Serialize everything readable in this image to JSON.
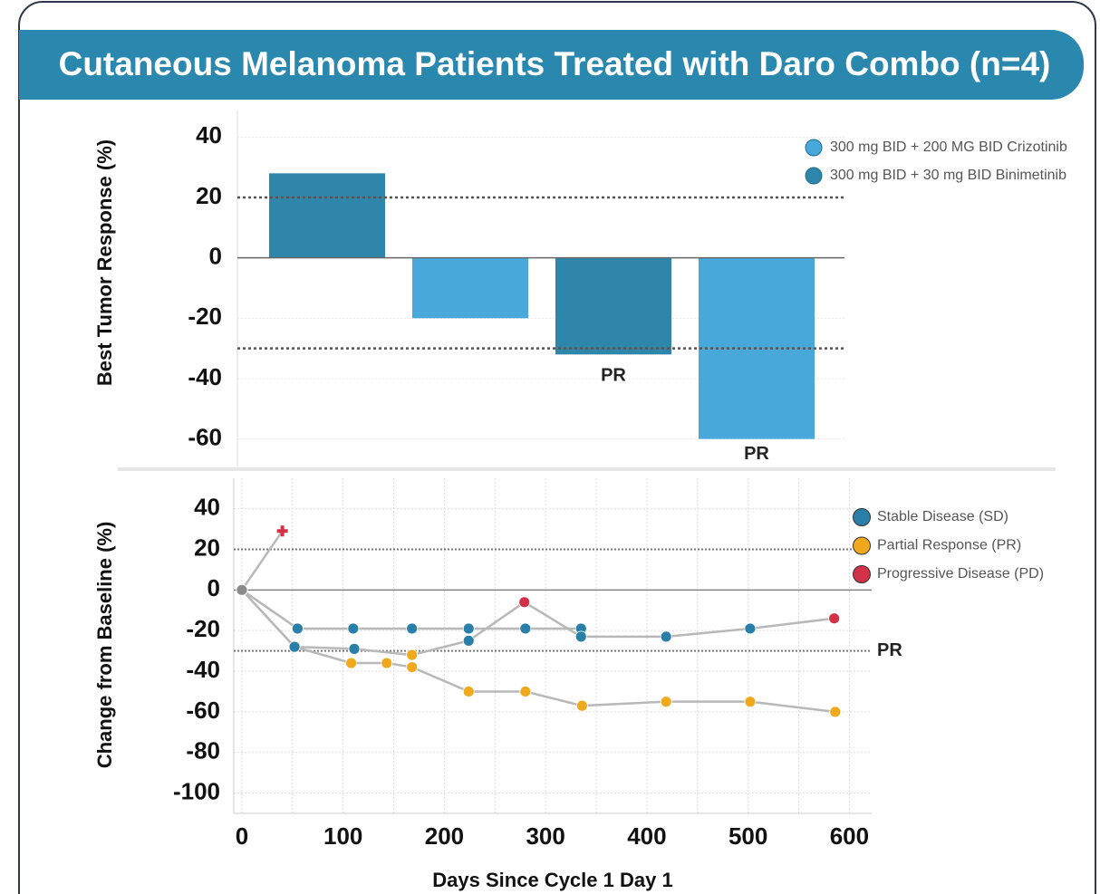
{
  "title": "Cutaneous Melanoma Patients Treated with Daro Combo (n=4)",
  "chart_data": [
    {
      "type": "bar",
      "y_label": "Best Tumor Response (%)",
      "categories": [
        null,
        null,
        null,
        null
      ],
      "series": [
        {
          "name": "300 mg BID + 200 MG BID Crizotinib",
          "color": "#48a8da",
          "values": [
            null,
            -20,
            null,
            -60
          ]
        },
        {
          "name": "300 mg BID + 30 mg BID Binimetinib",
          "color": "#2e86ab",
          "values": [
            28,
            null,
            -32,
            null
          ]
        }
      ],
      "ylim": [
        -70,
        50
      ],
      "yticks": [
        40,
        20,
        0,
        -20,
        -40,
        -60
      ],
      "reference_lines": [
        20,
        -30
      ],
      "annotations": [
        "PR",
        "PR"
      ],
      "legend": "upper right"
    },
    {
      "type": "line",
      "y_label": "Change from Baseline (%)",
      "x_label": "Days Since Cycle 1 Day 1",
      "series": [
        {
          "color": "#b8b8b8",
          "x": [
            0,
            40
          ],
          "values": [
            0,
            29
          ],
          "marker_colors": [
            "#8a8a8a",
            "#d23148"
          ],
          "markers": [
            "circle",
            "plus"
          ]
        },
        {
          "color": "#b8b8b8",
          "x": [
            0,
            55,
            110,
            168,
            224,
            280,
            335
          ],
          "values": [
            0,
            -19,
            -19,
            -19,
            -19,
            -19,
            -19
          ],
          "marker_colors": [
            "#8a8a8a",
            "#2a7fa8",
            "#2a7fa8",
            "#2a7fa8",
            "#2a7fa8",
            "#2a7fa8",
            "#2a7fa8"
          ],
          "markers": [
            "circle",
            "circle",
            "circle",
            "circle",
            "circle",
            "circle",
            "circle"
          ]
        },
        {
          "color": "#b8b8b8",
          "x": [
            0,
            52,
            111,
            168,
            224,
            279,
            335,
            419,
            502,
            585
          ],
          "values": [
            0,
            -28,
            -29,
            -32,
            -25,
            -6,
            -23,
            -23,
            -19,
            -14
          ],
          "marker_colors": [
            "#8a8a8a",
            "#2a7fa8",
            "#2a7fa8",
            "#f0a91c",
            "#2a7fa8",
            "#d23148",
            "#2a7fa8",
            "#2a7fa8",
            "#2a7fa8",
            "#d23148"
          ],
          "markers": [
            "circle",
            "circle",
            "circle",
            "circle",
            "circle",
            "circle",
            "circle",
            "circle",
            "circle",
            "circle"
          ]
        },
        {
          "color": "#b8b8b8",
          "x": [
            0,
            52,
            108,
            143,
            168,
            224,
            280,
            336,
            419,
            502,
            586
          ],
          "values": [
            0,
            -28,
            -36,
            -36,
            -38,
            -50,
            -50,
            -57,
            -55,
            -55,
            -60
          ],
          "marker_colors": [
            "#8a8a8a",
            "#2a7fa8",
            "#f0a91c",
            "#f0a91c",
            "#f0a91c",
            "#f0a91c",
            "#f0a91c",
            "#f0a91c",
            "#f0a91c",
            "#f0a91c",
            "#f0a91c"
          ],
          "markers": [
            "circle",
            "circle",
            "circle",
            "circle",
            "circle",
            "circle",
            "circle",
            "circle",
            "circle",
            "circle",
            "circle"
          ]
        }
      ],
      "legend_items": [
        {
          "name": "Stable Disease (SD)",
          "color": "#2a7fa8"
        },
        {
          "name": "Partial Response (PR)",
          "color": "#f0a91c"
        },
        {
          "name": "Progressive Disease (PD)",
          "color": "#d23148"
        }
      ],
      "legend": "upper right",
      "xlim": [
        -8,
        622
      ],
      "ylim": [
        -110,
        55
      ],
      "xticks": [
        0,
        100,
        200,
        300,
        400,
        500,
        600
      ],
      "minor_xticks": [
        50,
        150,
        250,
        350,
        450,
        550
      ],
      "yticks": [
        40,
        20,
        0,
        -20,
        -40,
        -60,
        -80,
        -100
      ],
      "grid": true,
      "reference_lines": [
        20,
        -30
      ],
      "reference_label": "PR"
    }
  ]
}
